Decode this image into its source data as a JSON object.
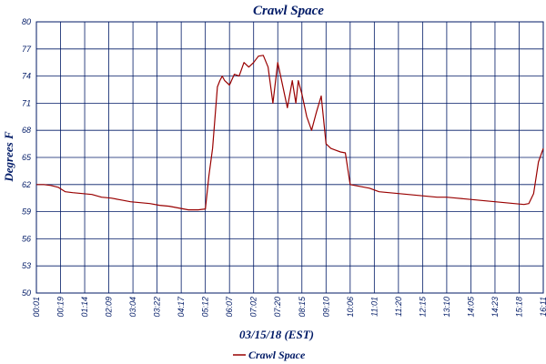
{
  "chart_data": {
    "type": "line",
    "title": "Crawl Space",
    "xlabel": "03/15/18 (EST)",
    "ylabel": "Degrees F",
    "ylim": [
      50,
      80
    ],
    "y_ticks": [
      50,
      53,
      56,
      59,
      62,
      65,
      68,
      71,
      74,
      77,
      80
    ],
    "x_ticks": [
      "00:01",
      "00:19",
      "01:14",
      "02:09",
      "03:04",
      "03:22",
      "04:17",
      "05:12",
      "06:07",
      "07:02",
      "07:20",
      "08:15",
      "09:10",
      "10:06",
      "11:01",
      "11:20",
      "12:15",
      "13:10",
      "14:05",
      "14:23",
      "15:18",
      "16:11"
    ],
    "grid": true,
    "legend_position": "bottom",
    "colors": {
      "line": "#990000",
      "grid": "#001a66",
      "text": "#001a66"
    },
    "series": [
      {
        "name": "Crawl Space",
        "x": [
          0,
          0.3,
          0.6,
          0.9,
          1.2,
          1.5,
          1.9,
          2.3,
          2.7,
          3.1,
          3.5,
          3.9,
          4.3,
          4.7,
          5.1,
          5.5,
          5.9,
          6.3,
          6.7,
          7.0,
          7.15,
          7.3,
          7.5,
          7.6,
          7.7,
          7.8,
          8.0,
          8.2,
          8.4,
          8.6,
          8.8,
          9.0,
          9.2,
          9.4,
          9.6,
          9.8,
          10.0,
          10.2,
          10.4,
          10.6,
          10.75,
          10.85,
          11.0,
          11.2,
          11.4,
          11.6,
          11.8,
          12.0,
          12.2,
          12.4,
          12.6,
          12.8,
          13.0,
          13.4,
          13.8,
          14.2,
          14.6,
          15.0,
          15.4,
          15.8,
          16.2,
          16.6,
          17.0,
          17.4,
          17.8,
          18.2,
          18.6,
          19.0,
          19.4,
          19.8,
          20.2,
          20.4,
          20.6,
          20.8,
          21.0
        ],
        "values": [
          62.0,
          62.0,
          61.9,
          61.7,
          61.2,
          61.1,
          61.0,
          60.9,
          60.6,
          60.5,
          60.3,
          60.1,
          60.0,
          59.9,
          59.7,
          59.6,
          59.4,
          59.2,
          59.2,
          59.3,
          63.0,
          66.0,
          72.8,
          73.5,
          74.0,
          73.5,
          73.0,
          74.2,
          74.0,
          75.5,
          75.0,
          75.5,
          76.2,
          76.3,
          75.0,
          71.0,
          75.5,
          73.0,
          70.5,
          73.5,
          71.0,
          73.5,
          72.0,
          69.5,
          68.0,
          70.0,
          71.8,
          66.5,
          66.0,
          65.8,
          65.6,
          65.5,
          62.0,
          61.8,
          61.6,
          61.2,
          61.1,
          61.0,
          60.9,
          60.8,
          60.7,
          60.6,
          60.6,
          60.5,
          60.4,
          60.3,
          60.2,
          60.1,
          60.0,
          59.9,
          59.8,
          59.9,
          61.0,
          64.5,
          66.0
        ]
      }
    ]
  }
}
